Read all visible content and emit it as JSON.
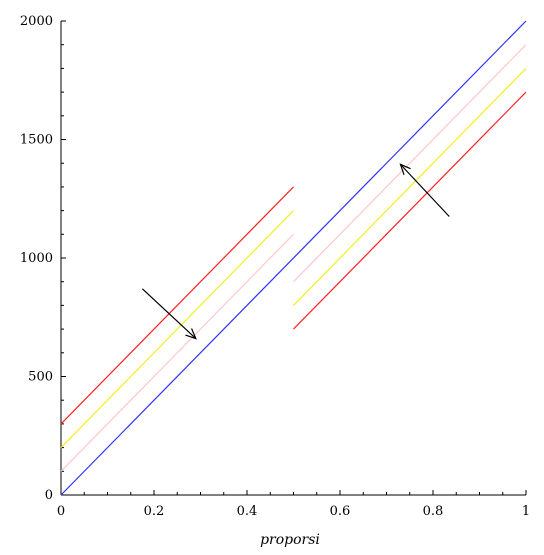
{
  "chart_data": {
    "type": "line",
    "title": "",
    "xlabel": "proporsi",
    "ylabel": "",
    "xlim": [
      0,
      1
    ],
    "ylim": [
      0,
      2000
    ],
    "grid": false,
    "legend": "none",
    "x_ticks": [
      0,
      0.2,
      0.4,
      0.6,
      0.8,
      1
    ],
    "x_tick_labels": [
      "0",
      "0.2",
      "0.4",
      "0.6",
      "0.8",
      "1"
    ],
    "y_ticks": [
      0,
      500,
      1000,
      1500,
      2000
    ],
    "y_tick_labels": [
      "0",
      "500",
      "1000",
      "1500",
      "2000"
    ],
    "series": [
      {
        "color": "#ff2020",
        "segments": [
          [
            [
              0,
              300
            ],
            [
              0.5,
              1300
            ]
          ],
          [
            [
              0.5,
              700
            ],
            [
              1,
              1700
            ]
          ]
        ]
      },
      {
        "color": "#f0f020",
        "segments": [
          [
            [
              0,
              200
            ],
            [
              0.5,
              1200
            ]
          ],
          [
            [
              0.5,
              800
            ],
            [
              1,
              1800
            ]
          ]
        ]
      },
      {
        "color": "#ffc8c8",
        "segments": [
          [
            [
              0,
              100
            ],
            [
              0.5,
              1100
            ]
          ],
          [
            [
              0.5,
              900
            ],
            [
              1,
              1900
            ]
          ]
        ]
      },
      {
        "color": "#3030ff",
        "segments": [
          [
            [
              0,
              0
            ],
            [
              1,
              2000
            ]
          ]
        ]
      }
    ],
    "annotations": [
      {
        "type": "arrow",
        "from": [
          0.175,
          870
        ],
        "to": [
          0.29,
          660
        ],
        "color": "#000000"
      },
      {
        "type": "arrow",
        "from": [
          0.835,
          1175
        ],
        "to": [
          0.73,
          1395
        ],
        "color": "#000000"
      }
    ]
  }
}
